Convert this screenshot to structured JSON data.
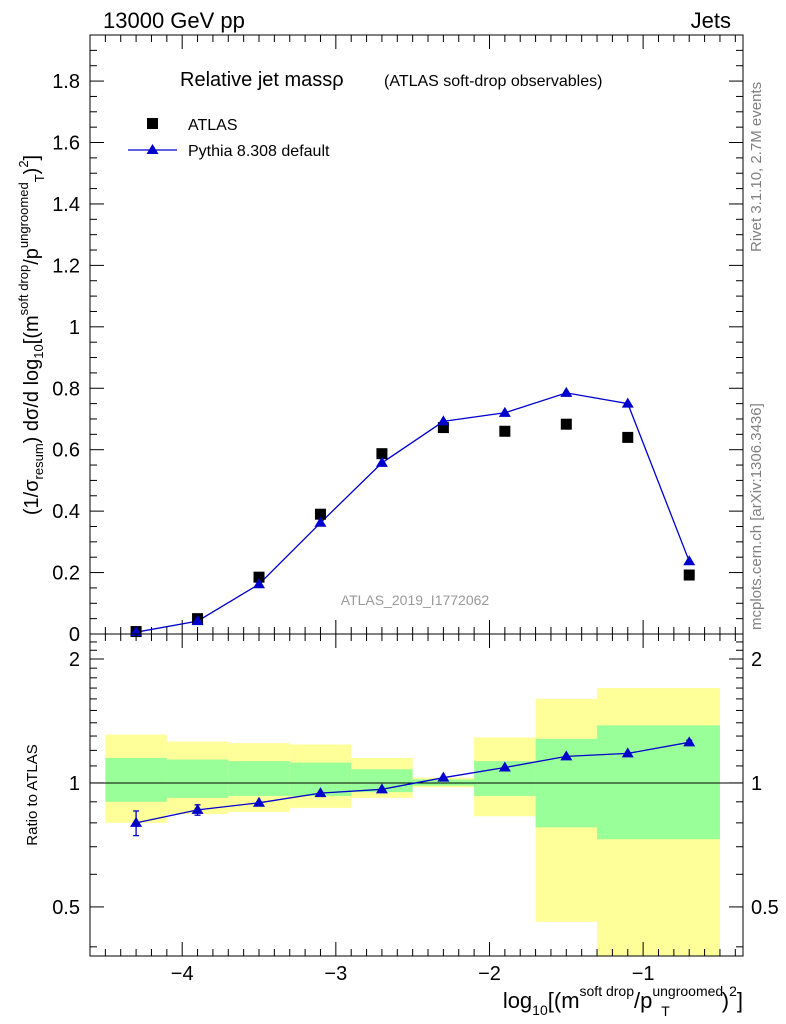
{
  "header": {
    "left": "13000 GeV pp",
    "right": "Jets"
  },
  "side": {
    "rivet": "Rivet 3.1.10,  2.7M events",
    "mcplots": "mcplots.cern.ch [arXiv:1306.3436]"
  },
  "colors": {
    "data": "#000000",
    "mc": "#0000cc",
    "band_inner": "#99ff99",
    "band_outer": "#ffff99",
    "watermark": "#999999"
  },
  "chart_data": [
    {
      "type": "scatter",
      "panel": "main",
      "title": "Relative jet massρ",
      "title_sub": "(ATLAS soft-drop observables)",
      "watermark": "ATLAS_2019_I1772062",
      "ylabel": "(1/σresum) dσ/d log10[(msoft drop/pTungroomed)2]",
      "xlim": [
        -4.6,
        -0.35
      ],
      "ylim": [
        0,
        1.95
      ],
      "yticks": [
        0,
        0.2,
        0.4,
        0.6,
        0.8,
        1,
        1.2,
        1.4,
        1.6,
        1.8
      ],
      "ytick_labels": [
        "0",
        "0.2",
        "0.4",
        "0.6",
        "0.8",
        "1",
        "1.2",
        "1.4",
        "1.6",
        "1.8"
      ],
      "legend_position": "top-left",
      "series": [
        {
          "name": "ATLAS",
          "marker": "square",
          "x": [
            -4.3,
            -3.9,
            -3.5,
            -3.1,
            -2.7,
            -2.3,
            -1.9,
            -1.5,
            -1.1,
            -0.7
          ],
          "y": [
            0.008,
            0.05,
            0.185,
            0.39,
            0.587,
            0.672,
            0.66,
            0.683,
            0.64,
            0.192
          ]
        },
        {
          "name": "Pythia 8.308 default",
          "marker": "triangle",
          "x": [
            -4.3,
            -3.9,
            -3.5,
            -3.1,
            -2.7,
            -2.3,
            -1.9,
            -1.5,
            -1.1,
            -0.7
          ],
          "y": [
            0.006,
            0.042,
            0.162,
            0.362,
            0.557,
            0.692,
            0.72,
            0.785,
            0.75,
            0.237
          ]
        }
      ]
    },
    {
      "type": "line",
      "panel": "ratio",
      "ylabel": "Ratio to ATLAS",
      "xlabel": "log10[(msoft drop/pTungroomed)2]",
      "xlim": [
        -4.6,
        -0.35
      ],
      "ylim": [
        0.38,
        2.3
      ],
      "log_y": true,
      "xticks": [
        -4,
        -3,
        -2,
        -1
      ],
      "xtick_labels": [
        "−4",
        "−3",
        "−2",
        "−1"
      ],
      "yticks": [
        0.5,
        1,
        2
      ],
      "ytick_labels": [
        "0.5",
        "1",
        "2"
      ],
      "bins_lo": [
        -4.5,
        -4.1,
        -3.7,
        -3.3,
        -2.9,
        -2.5,
        -2.1,
        -1.7,
        -1.3,
        -0.9
      ],
      "bins_hi": [
        -4.1,
        -3.7,
        -3.3,
        -2.9,
        -2.5,
        -2.1,
        -1.7,
        -1.3,
        -0.9,
        -0.5
      ],
      "band_inner_lo": [
        0.9,
        0.92,
        0.93,
        0.93,
        0.95,
        0.985,
        0.93,
        0.78,
        0.73,
        0.73
      ],
      "band_inner_hi": [
        1.15,
        1.14,
        1.13,
        1.12,
        1.08,
        1.02,
        1.13,
        1.28,
        1.38,
        1.38
      ],
      "band_outer_lo": [
        0.8,
        0.84,
        0.85,
        0.87,
        0.92,
        0.975,
        0.83,
        0.46,
        0.35,
        0.35
      ],
      "band_outer_hi": [
        1.31,
        1.26,
        1.25,
        1.24,
        1.15,
        1.03,
        1.29,
        1.6,
        1.7,
        1.7
      ],
      "series": [
        {
          "name": "Pythia 8.308 default",
          "x": [
            -4.3,
            -3.9,
            -3.5,
            -3.1,
            -2.7,
            -2.3,
            -1.9,
            -1.5,
            -1.1,
            -0.7
          ],
          "y": [
            0.8,
            0.86,
            0.895,
            0.945,
            0.965,
            1.03,
            1.09,
            1.16,
            1.18,
            1.255
          ],
          "err": [
            0.055,
            0.025,
            0.01,
            0.01,
            0.01,
            0.01,
            0.01,
            0.01,
            0.01,
            0.015
          ]
        }
      ]
    }
  ]
}
